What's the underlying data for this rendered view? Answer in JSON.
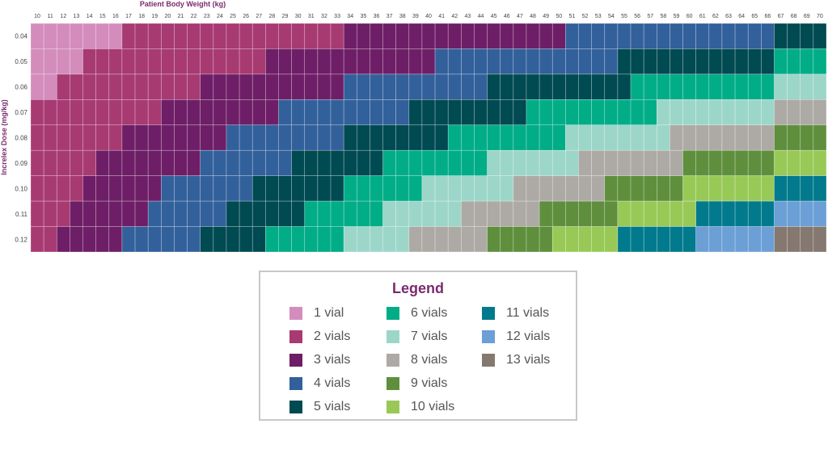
{
  "chart_data": {
    "type": "heatmap",
    "xlabel": "Patient Body Weight (kg)",
    "ylabel": "Increlex Dose (mg/kg)",
    "x_ticks": [
      10,
      11,
      12,
      13,
      14,
      15,
      16,
      17,
      18,
      19,
      20,
      21,
      22,
      23,
      24,
      25,
      26,
      27,
      28,
      29,
      30,
      31,
      32,
      33,
      34,
      35,
      36,
      37,
      38,
      39,
      40,
      41,
      42,
      43,
      44,
      45,
      46,
      47,
      48,
      49,
      50,
      51,
      52,
      53,
      54,
      55,
      56,
      57,
      58,
      59,
      60,
      61,
      62,
      63,
      64,
      65,
      66,
      67,
      68,
      69,
      70
    ],
    "y_ticks": [
      "0.04",
      "0.05",
      "0.06",
      "0.07",
      "0.08",
      "0.09",
      "0.10",
      "0.11",
      "0.12"
    ],
    "rows": [
      {
        "dose": "0.04",
        "vial_runs": [
          [
            10,
            16,
            1
          ],
          [
            17,
            33,
            2
          ],
          [
            34,
            50,
            3
          ],
          [
            51,
            66,
            4
          ],
          [
            67,
            70,
            5
          ]
        ]
      },
      {
        "dose": "0.05",
        "vial_runs": [
          [
            10,
            13,
            1
          ],
          [
            14,
            27,
            2
          ],
          [
            28,
            40,
            3
          ],
          [
            41,
            54,
            4
          ],
          [
            55,
            66,
            5
          ],
          [
            67,
            70,
            6
          ]
        ]
      },
      {
        "dose": "0.06",
        "vial_runs": [
          [
            10,
            11,
            1
          ],
          [
            12,
            22,
            2
          ],
          [
            23,
            33,
            3
          ],
          [
            34,
            44,
            4
          ],
          [
            45,
            55,
            5
          ],
          [
            56,
            66,
            6
          ],
          [
            67,
            70,
            7
          ]
        ]
      },
      {
        "dose": "0.07",
        "vial_runs": [
          [
            10,
            19,
            2
          ],
          [
            20,
            28,
            3
          ],
          [
            29,
            38,
            4
          ],
          [
            39,
            47,
            5
          ],
          [
            48,
            57,
            6
          ],
          [
            58,
            66,
            7
          ],
          [
            67,
            70,
            8
          ]
        ]
      },
      {
        "dose": "0.08",
        "vial_runs": [
          [
            10,
            16,
            2
          ],
          [
            17,
            24,
            3
          ],
          [
            25,
            33,
            4
          ],
          [
            34,
            41,
            5
          ],
          [
            42,
            50,
            6
          ],
          [
            51,
            58,
            7
          ],
          [
            59,
            66,
            8
          ],
          [
            67,
            70,
            9
          ]
        ]
      },
      {
        "dose": "0.09",
        "vial_runs": [
          [
            10,
            14,
            2
          ],
          [
            15,
            22,
            3
          ],
          [
            23,
            29,
            4
          ],
          [
            30,
            36,
            5
          ],
          [
            37,
            44,
            6
          ],
          [
            45,
            51,
            7
          ],
          [
            52,
            59,
            8
          ],
          [
            60,
            66,
            9
          ],
          [
            67,
            70,
            10
          ]
        ]
      },
      {
        "dose": "0.10",
        "vial_runs": [
          [
            10,
            13,
            2
          ],
          [
            14,
            19,
            3
          ],
          [
            20,
            26,
            4
          ],
          [
            27,
            33,
            5
          ],
          [
            34,
            39,
            6
          ],
          [
            40,
            46,
            7
          ],
          [
            47,
            53,
            8
          ],
          [
            54,
            59,
            9
          ],
          [
            60,
            66,
            10
          ],
          [
            67,
            70,
            11
          ]
        ]
      },
      {
        "dose": "0.11",
        "vial_runs": [
          [
            10,
            12,
            2
          ],
          [
            13,
            18,
            3
          ],
          [
            19,
            24,
            4
          ],
          [
            25,
            30,
            5
          ],
          [
            31,
            36,
            6
          ],
          [
            37,
            42,
            7
          ],
          [
            43,
            48,
            8
          ],
          [
            49,
            54,
            9
          ],
          [
            55,
            60,
            10
          ],
          [
            61,
            66,
            11
          ],
          [
            67,
            70,
            12
          ]
        ]
      },
      {
        "dose": "0.12",
        "vial_runs": [
          [
            10,
            11,
            2
          ],
          [
            12,
            16,
            3
          ],
          [
            17,
            22,
            4
          ],
          [
            23,
            27,
            5
          ],
          [
            28,
            33,
            6
          ],
          [
            34,
            38,
            7
          ],
          [
            39,
            44,
            8
          ],
          [
            45,
            49,
            9
          ],
          [
            50,
            54,
            10
          ],
          [
            55,
            60,
            11
          ],
          [
            61,
            66,
            12
          ],
          [
            67,
            70,
            13
          ]
        ]
      }
    ],
    "legend_title": "Legend",
    "legend": [
      {
        "vials": 1,
        "label": "1 vial",
        "color": "#d48cbd"
      },
      {
        "vials": 2,
        "label": "2 vials",
        "color": "#a83a72"
      },
      {
        "vials": 3,
        "label": "3 vials",
        "color": "#6e1e66"
      },
      {
        "vials": 4,
        "label": "4 vials",
        "color": "#32609b"
      },
      {
        "vials": 5,
        "label": "5 vials",
        "color": "#004a52"
      },
      {
        "vials": 6,
        "label": "6 vials",
        "color": "#00ad87"
      },
      {
        "vials": 7,
        "label": "7 vials",
        "color": "#9cd6c9"
      },
      {
        "vials": 8,
        "label": "8 vials",
        "color": "#adaaa5"
      },
      {
        "vials": 9,
        "label": "9 vials",
        "color": "#5f8f3d"
      },
      {
        "vials": 10,
        "label": "10 vials",
        "color": "#98c957"
      },
      {
        "vials": 11,
        "label": "11 vials",
        "color": "#007a8c"
      },
      {
        "vials": 12,
        "label": "12 vials",
        "color": "#6b9fd6"
      },
      {
        "vials": 13,
        "label": "13 vials",
        "color": "#857870"
      }
    ],
    "title_color": "#7b2a6e",
    "tick_color": "#444444",
    "grid": true
  }
}
